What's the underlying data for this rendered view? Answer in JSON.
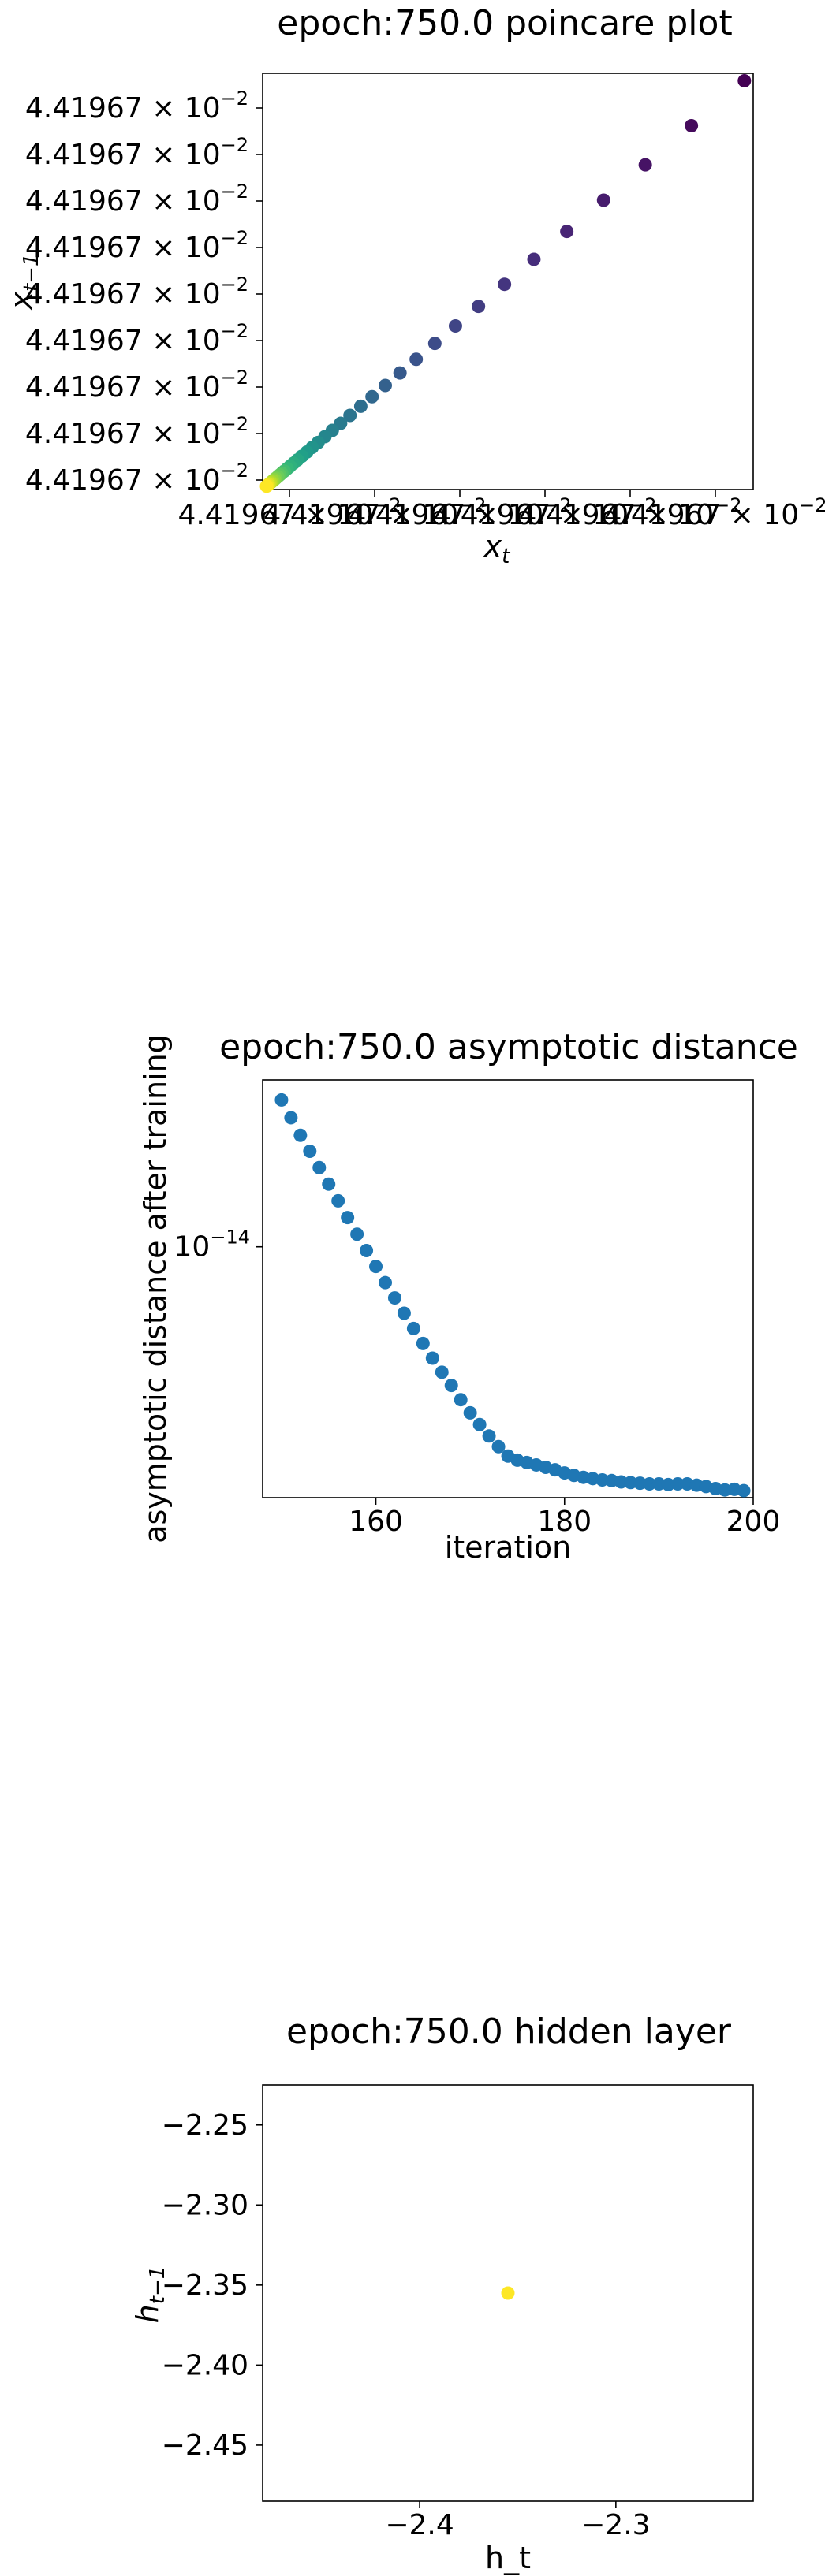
{
  "chart_data": [
    {
      "type": "scatter",
      "title": "epoch:750.0 poincare plot",
      "xlabel": "x",
      "xlabel_sub": "t",
      "ylabel": "x",
      "ylabel_sub": "t−1",
      "xtick_labels": [
        "4.41967 × 10",
        "4.41967 × 10",
        "4.41967 × 10",
        "4.41967 × 10",
        "4.41967 × 10",
        "4.41967 × 10"
      ],
      "xtick_exp": "−2",
      "ytick_labels": [
        "4.41967 × 10",
        "4.41967 × 10",
        "4.41967 × 10",
        "4.41967 × 10",
        "4.41967 × 10",
        "4.41967 × 10",
        "4.41967 × 10",
        "4.41967 × 10",
        "4.41967 × 10"
      ],
      "ytick_exp": "−2",
      "xlim": [
        0,
        1
      ],
      "ylim": [
        0,
        1
      ],
      "x": [
        0.982,
        0.874,
        0.78,
        0.695,
        0.62,
        0.553,
        0.493,
        0.44,
        0.393,
        0.351,
        0.313,
        0.28,
        0.25,
        0.223,
        0.2,
        0.178,
        0.159,
        0.142,
        0.127,
        0.113,
        0.101,
        0.09,
        0.08,
        0.071,
        0.063,
        0.056,
        0.05,
        0.044,
        0.039,
        0.035,
        0.031,
        0.027,
        0.024,
        0.021,
        0.018,
        0.016,
        0.014,
        0.012,
        0.01,
        0.008
      ],
      "y": [
        0.982,
        0.874,
        0.78,
        0.695,
        0.62,
        0.553,
        0.493,
        0.44,
        0.393,
        0.351,
        0.313,
        0.28,
        0.25,
        0.223,
        0.2,
        0.178,
        0.159,
        0.142,
        0.127,
        0.113,
        0.101,
        0.09,
        0.08,
        0.071,
        0.063,
        0.056,
        0.05,
        0.044,
        0.039,
        0.035,
        0.031,
        0.027,
        0.024,
        0.021,
        0.018,
        0.016,
        0.014,
        0.012,
        0.01,
        0.008
      ],
      "colormap": "viridis",
      "grid": false
    },
    {
      "type": "scatter",
      "title": "epoch:750.0 asymptotic distance",
      "xlabel": "iteration",
      "ylabel": "asymptotic distance after training",
      "yscale": "log",
      "xlim": [
        148,
        200
      ],
      "ylim": [
        2.6e-15,
        2.45e-14
      ],
      "xticks": [
        160,
        180,
        200
      ],
      "ytick_values": [
        1e-14
      ],
      "ytick_labels": [
        "10"
      ],
      "ytick_exp": "−14",
      "color": "#1f77b4",
      "x": [
        150,
        151,
        152,
        153,
        154,
        155,
        156,
        157,
        158,
        159,
        160,
        161,
        162,
        163,
        164,
        165,
        166,
        167,
        168,
        169,
        170,
        171,
        172,
        173,
        174,
        175,
        176,
        177,
        178,
        179,
        180,
        181,
        182,
        183,
        184,
        185,
        186,
        187,
        188,
        189,
        190,
        191,
        192,
        193,
        194,
        195,
        196,
        197,
        198,
        199
      ],
      "y": [
        2.2e-14,
        2e-14,
        1.82e-14,
        1.67e-14,
        1.53e-14,
        1.4e-14,
        1.28e-14,
        1.17e-14,
        1.07e-14,
        9.8e-15,
        9e-15,
        8.25e-15,
        7.6e-15,
        7e-15,
        6.45e-15,
        5.95e-15,
        5.5e-15,
        5.1e-15,
        4.75e-15,
        4.4e-15,
        4.1e-15,
        3.85e-15,
        3.62e-15,
        3.42e-15,
        3.25e-15,
        3.18e-15,
        3.14e-15,
        3.1e-15,
        3.06e-15,
        3.02e-15,
        2.97e-15,
        2.93e-15,
        2.9e-15,
        2.88e-15,
        2.86e-15,
        2.85e-15,
        2.83e-15,
        2.82e-15,
        2.81e-15,
        2.8e-15,
        2.8e-15,
        2.79e-15,
        2.8e-15,
        2.8e-15,
        2.78e-15,
        2.76e-15,
        2.73e-15,
        2.71e-15,
        2.72e-15,
        2.7e-15
      ],
      "grid": false
    },
    {
      "type": "scatter",
      "title": "epoch:750.0 hidden layer",
      "xlabel": "h_t",
      "ylabel": "h",
      "ylabel_sub": "t−1",
      "xlim": [
        -2.48,
        -2.23
      ],
      "ylim": [
        -2.485,
        -2.225
      ],
      "xticks": [
        -2.4,
        -2.3
      ],
      "xtick_labels": [
        "−2.4",
        "−2.3"
      ],
      "yticks": [
        -2.25,
        -2.3,
        -2.35,
        -2.4,
        -2.45
      ],
      "ytick_labels": [
        "−2.25",
        "−2.30",
        "−2.35",
        "−2.40",
        "−2.45"
      ],
      "x": [
        -2.355
      ],
      "y": [
        -2.355
      ],
      "color": "#fde725",
      "grid": false
    }
  ]
}
